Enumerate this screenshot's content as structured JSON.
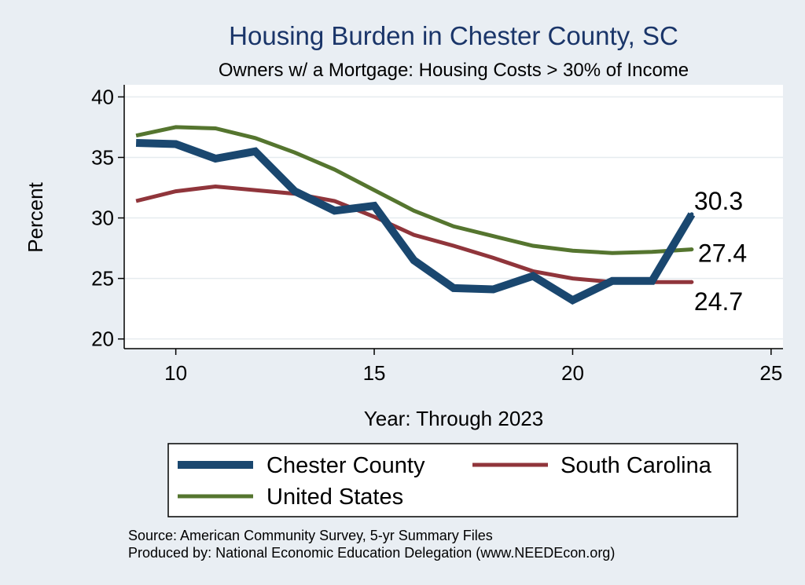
{
  "chart_data": {
    "type": "line",
    "title": "Housing Burden in Chester County, SC",
    "subtitle": "Owners w/ a Mortgage: Housing Costs > 30% of Income",
    "xlabel": "Year: Through 2023",
    "ylabel": "Percent",
    "xlim": [
      8.7,
      25.3
    ],
    "ylim": [
      19.2,
      41
    ],
    "x_ticks": [
      10,
      15,
      20,
      25
    ],
    "y_ticks": [
      20,
      25,
      30,
      35,
      40
    ],
    "grid": true,
    "legend_position": "bottom",
    "x": [
      9,
      10,
      11,
      12,
      13,
      14,
      15,
      16,
      17,
      18,
      19,
      20,
      21,
      22,
      23
    ],
    "series": [
      {
        "name": "Chester County",
        "color": "#1a476f",
        "values": [
          36.2,
          36.1,
          34.9,
          35.5,
          32.2,
          30.6,
          31.0,
          26.5,
          24.2,
          24.1,
          25.2,
          23.2,
          24.8,
          24.8,
          30.3
        ],
        "end_label": "30.3"
      },
      {
        "name": "South Carolina",
        "color": "#90353b",
        "values": [
          31.4,
          32.2,
          32.6,
          32.3,
          32.0,
          31.4,
          30.1,
          28.6,
          27.7,
          26.7,
          25.6,
          25.0,
          24.7,
          24.7,
          24.7
        ],
        "end_label": "24.7"
      },
      {
        "name": "United States",
        "color": "#55752f",
        "values": [
          36.8,
          37.5,
          37.4,
          36.6,
          35.4,
          34.0,
          32.3,
          30.6,
          29.3,
          28.5,
          27.7,
          27.3,
          27.1,
          27.2,
          27.4
        ],
        "end_label": "27.4"
      }
    ]
  },
  "source": {
    "line1": "Source: American Community Survey, 5-yr Summary Files",
    "line2": "Produced by: National Economic Education Delegation (www.NEEDEcon.org)"
  }
}
